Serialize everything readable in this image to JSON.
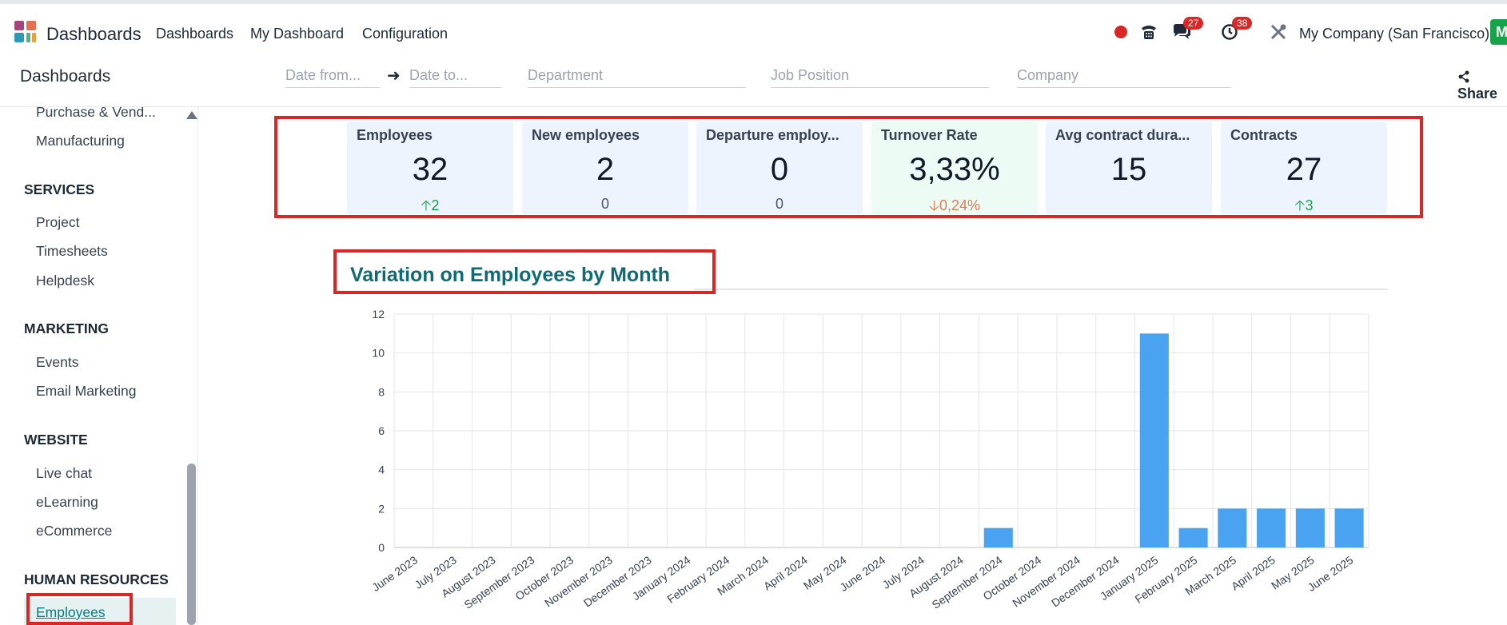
{
  "navbar": {
    "brand": "Dashboards",
    "menu": [
      "Dashboards",
      "My Dashboard",
      "Configuration"
    ],
    "messages_badge": "27",
    "activities_badge": "38",
    "company": "My Company (San Francisco)",
    "avatar_letter": "M"
  },
  "control_panel": {
    "title": "Dashboards",
    "date_from_placeholder": "Date from...",
    "date_to_placeholder": "Date to...",
    "department_placeholder": "Department",
    "job_position_placeholder": "Job Position",
    "company_placeholder": "Company",
    "share_label": "Share"
  },
  "sidebar": {
    "items_top": [
      "Purchase & Vend...",
      "Manufacturing"
    ],
    "sections": [
      {
        "title": "SERVICES",
        "items": [
          "Project",
          "Timesheets",
          "Helpdesk"
        ]
      },
      {
        "title": "MARKETING",
        "items": [
          "Events",
          "Email Marketing"
        ]
      },
      {
        "title": "WEBSITE",
        "items": [
          "Live chat",
          "eLearning",
          "eCommerce"
        ]
      },
      {
        "title": "HUMAN RESOURCES",
        "items": [
          "Employees"
        ]
      }
    ]
  },
  "kpis": [
    {
      "title": "Employees",
      "value": "32",
      "delta": "2",
      "direction": "up"
    },
    {
      "title": "New employees",
      "value": "2",
      "delta": "0",
      "direction": "none"
    },
    {
      "title": "Departure employ...",
      "value": "0",
      "delta": "0",
      "direction": "none"
    },
    {
      "title": "Turnover Rate",
      "value": "3,33%",
      "delta": "0,24%",
      "direction": "down"
    },
    {
      "title": "Avg contract dura...",
      "value": "15",
      "delta": "",
      "direction": "none"
    },
    {
      "title": "Contracts",
      "value": "27",
      "delta": "3",
      "direction": "up"
    }
  ],
  "colors": {
    "accent": "#0e6a73",
    "bar": "#4aa3f0",
    "highlight": "#dc2626",
    "up": "#16a34a",
    "down": "#e07b55"
  },
  "chart_data": {
    "type": "bar",
    "title": "Variation on Employees by Month",
    "xlabel": "",
    "ylabel": "",
    "ylim": [
      0,
      12
    ],
    "yticks": [
      0,
      2,
      4,
      6,
      8,
      10,
      12
    ],
    "grid": true,
    "categories": [
      "June 2023",
      "July 2023",
      "August 2023",
      "September 2023",
      "October 2023",
      "November 2023",
      "December 2023",
      "January 2024",
      "February 2024",
      "March 2024",
      "April 2024",
      "May 2024",
      "June 2024",
      "July 2024",
      "August 2024",
      "September 2024",
      "October 2024",
      "November 2024",
      "December 2024",
      "January 2025",
      "February 2025",
      "March 2025",
      "April 2025",
      "May 2025",
      "June 2025"
    ],
    "values": [
      0,
      0,
      0,
      0,
      0,
      0,
      0,
      0,
      0,
      0,
      0,
      0,
      0,
      0,
      0,
      1,
      0,
      0,
      0,
      11,
      1,
      2,
      2,
      2,
      2
    ]
  }
}
